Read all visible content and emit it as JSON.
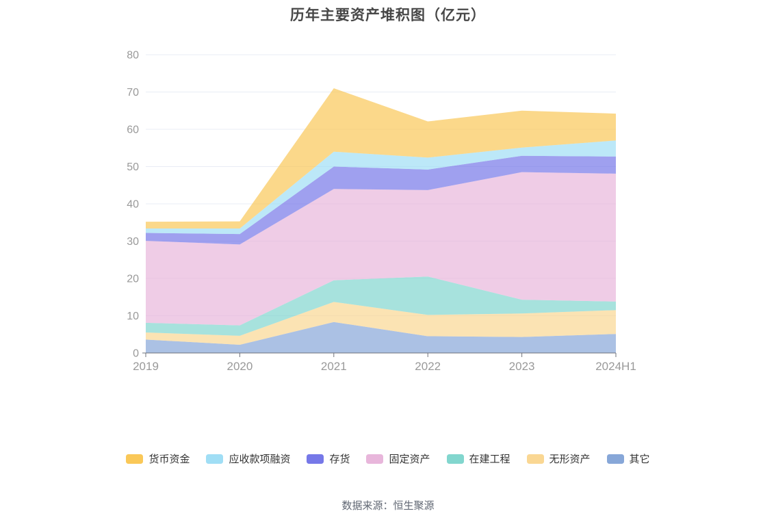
{
  "title": "历年主要资产堆积图（亿元）",
  "footer": "数据来源：恒生聚源",
  "chart_data": {
    "type": "area",
    "stacked": true,
    "title": "历年主要资产堆积图（亿元）",
    "categories": [
      "2019",
      "2020",
      "2021",
      "2022",
      "2023",
      "2024H1"
    ],
    "series": [
      {
        "name": "货币资金",
        "color": "#FAC858",
        "values": [
          1.8,
          1.9,
          17.0,
          9.7,
          9.9,
          7.2
        ]
      },
      {
        "name": "应收款项融资",
        "color": "#A0DEF5",
        "values": [
          1.2,
          1.5,
          4.0,
          3.2,
          2.2,
          4.3
        ]
      },
      {
        "name": "存货",
        "color": "#7678E8",
        "values": [
          2.1,
          2.8,
          6.0,
          5.5,
          4.4,
          4.6
        ]
      },
      {
        "name": "固定资产",
        "color": "#E8B6DB",
        "values": [
          22.0,
          21.7,
          24.5,
          23.2,
          34.2,
          34.3
        ]
      },
      {
        "name": "在建工程",
        "color": "#82D6CE",
        "values": [
          2.6,
          2.8,
          5.8,
          10.3,
          3.7,
          2.3
        ]
      },
      {
        "name": "无形资产",
        "color": "#FAD793",
        "values": [
          1.9,
          2.4,
          5.4,
          5.7,
          6.3,
          6.4
        ]
      },
      {
        "name": "其它",
        "color": "#87A7D8",
        "values": [
          3.6,
          2.2,
          8.3,
          4.5,
          4.3,
          5.1
        ]
      }
    ],
    "stack_order_note": "series listed top-of-stack first (legend order); stacking is bottom-up from last series",
    "totals": [
      35.2,
      35.3,
      71.0,
      62.1,
      65.0,
      64.2
    ],
    "xlabel": "",
    "ylabel": "",
    "ylim": [
      0,
      80
    ],
    "y_tick_step": 10,
    "grid": true,
    "legend_position": "bottom",
    "area_opacity": 0.7,
    "axis_color": "#6E7079",
    "gridline_color": "#E8ECF4",
    "tick_label_color": "#999999"
  }
}
